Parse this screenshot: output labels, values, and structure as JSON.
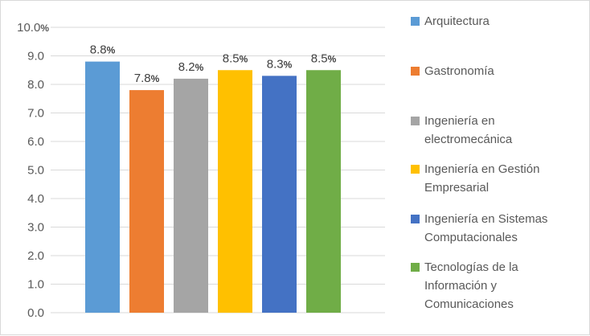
{
  "chart_data": {
    "type": "bar",
    "title": "",
    "xlabel": "",
    "ylabel": "",
    "ylim": [
      0,
      10
    ],
    "yticks": [
      "0.0",
      "1.0",
      "2.0",
      "3.0",
      "4.0",
      "5.0",
      "6.0",
      "7.0",
      "8.0",
      "9.0",
      "10.0"
    ],
    "ytick_suffix_top": "%",
    "grid": true,
    "legend_position": "right",
    "bars": [
      {
        "name": "Arquitectura",
        "value": 8.8,
        "label": "8.8",
        "color": "#5b9bd5"
      },
      {
        "name": "Gastronomía",
        "value": 7.8,
        "label": "7.8",
        "color": "#ed7d31"
      },
      {
        "name": "Ingeniería en electromecánica",
        "value": 8.2,
        "label": "8.2",
        "color": "#a5a5a5"
      },
      {
        "name": "Ingeniería en Gestión Empresarial",
        "value": 8.5,
        "label": "8.5",
        "color": "#ffc000"
      },
      {
        "name": "Ingeniería en Sistemas Computacionales",
        "value": 8.3,
        "label": "8.3",
        "color": "#4472c4"
      },
      {
        "name": "Tecnologías de la Información y Comunicaciones",
        "value": 8.5,
        "label": "8.5",
        "color": "#70ad47"
      }
    ],
    "value_suffix": "%"
  }
}
